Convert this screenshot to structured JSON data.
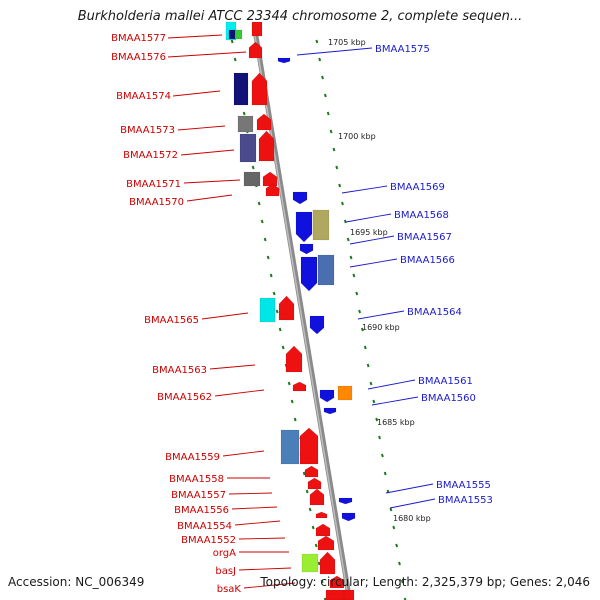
{
  "title": "Burkholderia mallei ATCC 23344 chromosome 2, complete sequen...",
  "footer": {
    "accession": "Accession: NC_006349",
    "summary": "Topology: circular; Length: 2,325,379 bp; Genes: 2,046"
  },
  "colors": {
    "forward": "#ee1111",
    "reverse": "#1111dd",
    "backbone": "#8a8a8a",
    "tick": "#1f7a1f",
    "label_left": "#cc0000",
    "label_right": "#1a1acc"
  },
  "kbp_labels": [
    "1705 kbp",
    "1700 kbp",
    "1695 kbp",
    "1690 kbp",
    "1685 kbp",
    "1680 kbp"
  ],
  "left_labels": [
    "BMAA1577",
    "BMAA1576",
    "BMAA1574",
    "BMAA1573",
    "BMAA1572",
    "BMAA1571",
    "BMAA1570",
    "BMAA1565",
    "BMAA1563",
    "BMAA1562",
    "BMAA1559",
    "BMAA1558",
    "BMAA1557",
    "BMAA1556",
    "BMAA1554",
    "BMAA1552",
    "orgA",
    "basJ",
    "bsaK"
  ],
  "right_labels": [
    "BMAA1575",
    "BMAA1569",
    "BMAA1568",
    "BMAA1567",
    "BMAA1566",
    "BMAA1564",
    "BMAA1561",
    "BMAA1560",
    "BMAA1555",
    "BMAA1553"
  ]
}
